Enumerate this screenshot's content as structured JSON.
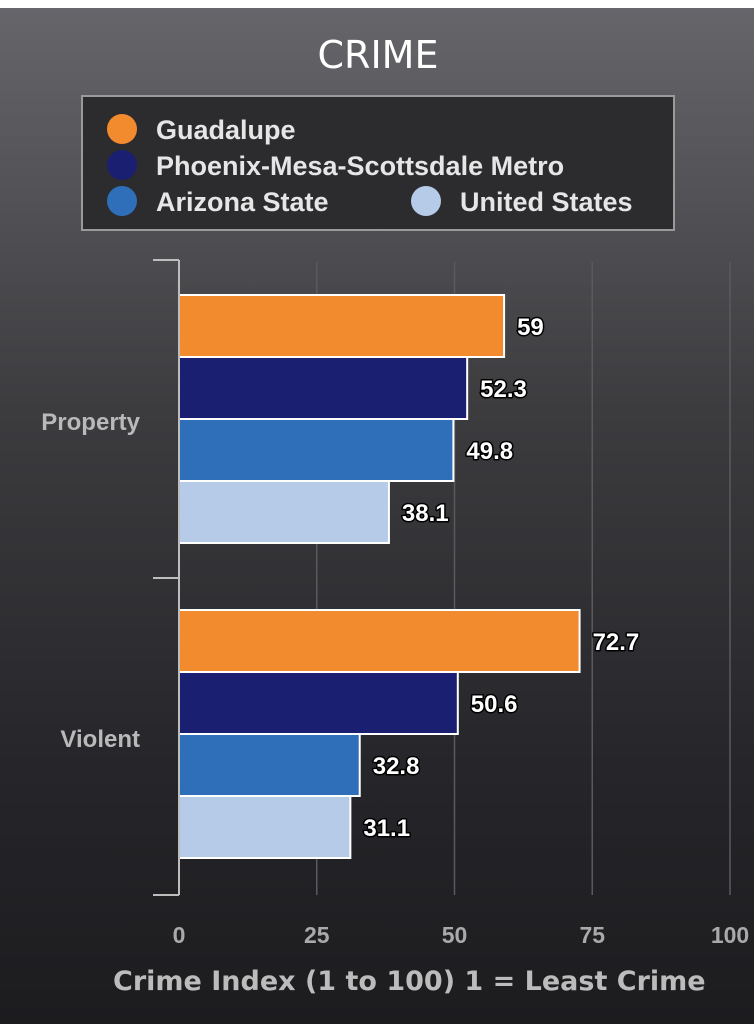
{
  "chart_data": {
    "type": "bar",
    "orientation": "horizontal",
    "title": "CRIME",
    "categories": [
      "Property",
      "Violent"
    ],
    "series": [
      {
        "name": "Guadalupe",
        "color": "#f28a2e",
        "values": [
          59,
          72.7
        ],
        "labels": [
          "59",
          "72.7"
        ]
      },
      {
        "name": "Phoenix-Mesa-Scottsdale Metro",
        "color": "#1b1f72",
        "values": [
          52.3,
          50.6
        ],
        "labels": [
          "52.3",
          "50.6"
        ]
      },
      {
        "name": "Arizona State",
        "color": "#2f6fb9",
        "values": [
          49.8,
          32.8
        ],
        "labels": [
          "49.8",
          "32.8"
        ]
      },
      {
        "name": "United States",
        "color": "#b5cbe8",
        "values": [
          38.1,
          31.1
        ],
        "labels": [
          "38.1",
          "31.1"
        ]
      }
    ],
    "xlabel": "Crime Index (1 to 100) 1 = Least Crime",
    "xlim": [
      0,
      100
    ],
    "xticks": [
      0,
      25,
      50,
      75,
      100
    ],
    "xtick_labels": [
      "0",
      "25",
      "50",
      "75",
      "100"
    ],
    "grid": true,
    "legend_position": "top"
  }
}
